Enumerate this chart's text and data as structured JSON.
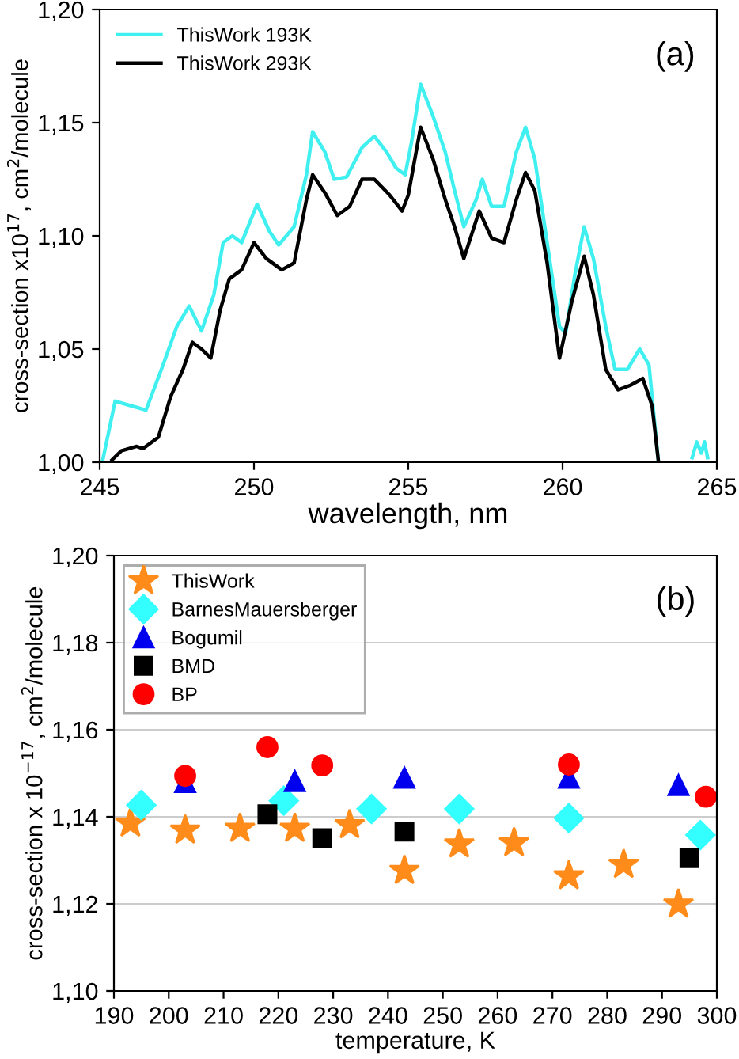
{
  "chart_data": [
    {
      "type": "line",
      "xlabel": "wavelength, nm",
      "ylabel": "cross-section x10$^{17}$, cm$^{2}$/molecule",
      "annotations": [
        "(a)"
      ],
      "legend": "top left",
      "grid": false,
      "line_style": "solid",
      "marker": "none",
      "xlim": [
        245,
        265
      ],
      "xticks": [
        245,
        250,
        255,
        260,
        265
      ],
      "ylim": [
        1.0,
        1.2
      ],
      "yticks": [
        {
          "value": 1.0,
          "label": "1,00"
        },
        {
          "value": 1.05,
          "label": "1,05"
        },
        {
          "value": 1.1,
          "label": "1,10"
        },
        {
          "value": 1.15,
          "label": "1,15"
        },
        {
          "value": 1.2,
          "label": "1,20"
        }
      ],
      "series": [
        {
          "name": "ThisWork 193K",
          "color": "#40f0f0",
          "x": [
            245.1,
            245.5,
            246.0,
            246.5,
            247.0,
            247.5,
            247.9,
            248.3,
            248.7,
            249.0,
            249.3,
            249.6,
            250.1,
            250.5,
            250.8,
            251.3,
            251.7,
            251.9,
            252.3,
            252.6,
            253.0,
            253.5,
            253.9,
            254.3,
            254.6,
            254.9,
            255.1,
            255.4,
            255.8,
            256.2,
            256.5,
            256.8,
            257.2,
            257.4,
            257.7,
            258.1,
            258.5,
            258.8,
            259.1,
            259.5,
            259.9,
            260.1,
            260.4,
            260.7,
            261.0,
            261.4,
            261.7,
            262.1,
            262.5,
            262.8,
            263.1,
            263.6,
            264.2,
            264.35,
            264.5,
            264.6,
            264.7
          ],
          "values": [
            1.001,
            1.027,
            1.025,
            1.023,
            1.041,
            1.06,
            1.069,
            1.058,
            1.074,
            1.097,
            1.1,
            1.097,
            1.114,
            1.102,
            1.096,
            1.104,
            1.127,
            1.146,
            1.137,
            1.125,
            1.126,
            1.139,
            1.144,
            1.137,
            1.13,
            1.127,
            1.141,
            1.167,
            1.153,
            1.137,
            1.12,
            1.104,
            1.116,
            1.125,
            1.113,
            1.113,
            1.137,
            1.148,
            1.134,
            1.097,
            1.06,
            1.057,
            1.083,
            1.104,
            1.09,
            1.06,
            1.041,
            1.041,
            1.05,
            1.043,
            1.001,
            null,
            1.002,
            1.009,
            1.004,
            1.009,
            1.002
          ]
        },
        {
          "name": "ThisWork 293K",
          "color": "#000000",
          "x": [
            245.4,
            245.7,
            246.2,
            246.4,
            246.9,
            247.3,
            247.7,
            248.0,
            248.3,
            248.6,
            248.9,
            249.2,
            249.6,
            250.0,
            250.4,
            250.9,
            251.3,
            251.7,
            251.9,
            252.3,
            252.7,
            253.1,
            253.5,
            253.9,
            254.4,
            254.8,
            255.0,
            255.4,
            255.8,
            256.2,
            256.5,
            256.8,
            257.3,
            257.7,
            258.1,
            258.5,
            258.8,
            259.1,
            259.5,
            259.9,
            260.3,
            260.7,
            261.0,
            261.4,
            261.8,
            262.2,
            262.6,
            262.9,
            263.1
          ],
          "values": [
            1.001,
            1.005,
            1.007,
            1.006,
            1.011,
            1.029,
            1.041,
            1.053,
            1.05,
            1.046,
            1.067,
            1.081,
            1.085,
            1.097,
            1.09,
            1.085,
            1.088,
            1.116,
            1.127,
            1.119,
            1.109,
            1.113,
            1.125,
            1.125,
            1.118,
            1.111,
            1.118,
            1.148,
            1.134,
            1.116,
            1.104,
            1.09,
            1.111,
            1.099,
            1.097,
            1.116,
            1.128,
            1.12,
            1.088,
            1.046,
            1.071,
            1.091,
            1.074,
            1.041,
            1.032,
            1.034,
            1.037,
            1.025,
            1.001
          ]
        }
      ]
    },
    {
      "type": "scatter",
      "xlabel": "temperature, K",
      "ylabel": "cross-section x 10$^{−17}$, cm$^{2}$/molecule",
      "annotations": [
        "(b)"
      ],
      "legend": "top left",
      "grid": "y",
      "xlim": [
        190,
        300
      ],
      "xticks": [
        190,
        200,
        210,
        220,
        230,
        240,
        250,
        260,
        270,
        280,
        290,
        300
      ],
      "ylim": [
        1.1,
        1.2
      ],
      "yticks": [
        {
          "value": 1.1,
          "label": "1,10"
        },
        {
          "value": 1.12,
          "label": "1,12"
        },
        {
          "value": 1.14,
          "label": "1,14"
        },
        {
          "value": 1.16,
          "label": "1,16"
        },
        {
          "value": 1.18,
          "label": "1,18"
        },
        {
          "value": 1.2,
          "label": "1,20"
        }
      ],
      "series": [
        {
          "name": "ThisWork",
          "color": "#ff8c1a",
          "marker": "star",
          "x": [
            193,
            203,
            213,
            223,
            233,
            243,
            253,
            263,
            273,
            283,
            293
          ],
          "values": [
            1.1385,
            1.1369,
            1.1373,
            1.1373,
            1.1381,
            1.1276,
            1.1337,
            1.134,
            1.1264,
            1.129,
            1.1199
          ]
        },
        {
          "name": "BarnesMauersberger",
          "color": "#33ffff",
          "marker": "diamond",
          "x": [
            195,
            221,
            237,
            253,
            273,
            297
          ],
          "values": [
            1.1427,
            1.1437,
            1.1418,
            1.1418,
            1.1397,
            1.1358
          ]
        },
        {
          "name": "Bogumil",
          "color": "#0000ee",
          "marker": "triangle",
          "x": [
            203,
            223,
            243,
            273,
            293
          ],
          "values": [
            1.148,
            1.1482,
            1.149,
            1.149,
            1.1473
          ]
        },
        {
          "name": "BMD",
          "color": "#000000",
          "marker": "square",
          "x": [
            218,
            228,
            243,
            295
          ],
          "values": [
            1.1406,
            1.1351,
            1.1366,
            1.1305
          ]
        },
        {
          "name": "BP",
          "color": "#ff0000",
          "marker": "circle",
          "x": [
            203,
            218,
            228,
            273,
            298
          ],
          "values": [
            1.1494,
            1.156,
            1.1518,
            1.152,
            1.1446
          ]
        }
      ]
    }
  ]
}
